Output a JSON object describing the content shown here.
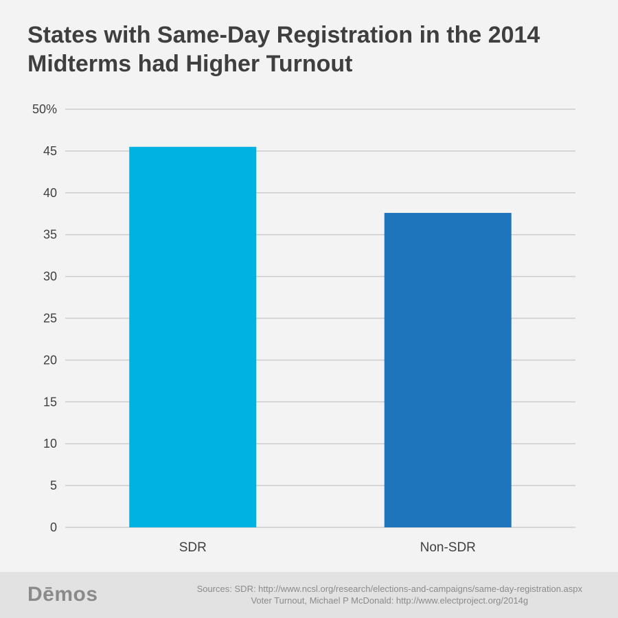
{
  "chart_data": {
    "type": "bar",
    "title": "States with Same-Day Registration in the 2014 Midterms had Higher Turnout",
    "categories": [
      "SDR",
      "Non-SDR"
    ],
    "values": [
      45.5,
      37.6
    ],
    "ylim": [
      0,
      50
    ],
    "yticks": [
      0,
      5,
      10,
      15,
      20,
      25,
      30,
      35,
      40,
      45,
      50
    ],
    "ytick_labels": [
      "0",
      "5",
      "10",
      "15",
      "20",
      "25",
      "30",
      "35",
      "40",
      "45",
      "50%"
    ],
    "grid": true,
    "colors": [
      "#00b2e2",
      "#1f75bc"
    ],
    "gridline_color": "#cccccc"
  },
  "footer": {
    "logo": "Dēmos",
    "source_line1": "Sources: SDR: http://www.ncsl.org/research/elections-and-campaigns/same-day-registration.aspx",
    "source_line2": "Voter Turnout, Michael P McDonald: http://www.electproject.org/2014g"
  }
}
